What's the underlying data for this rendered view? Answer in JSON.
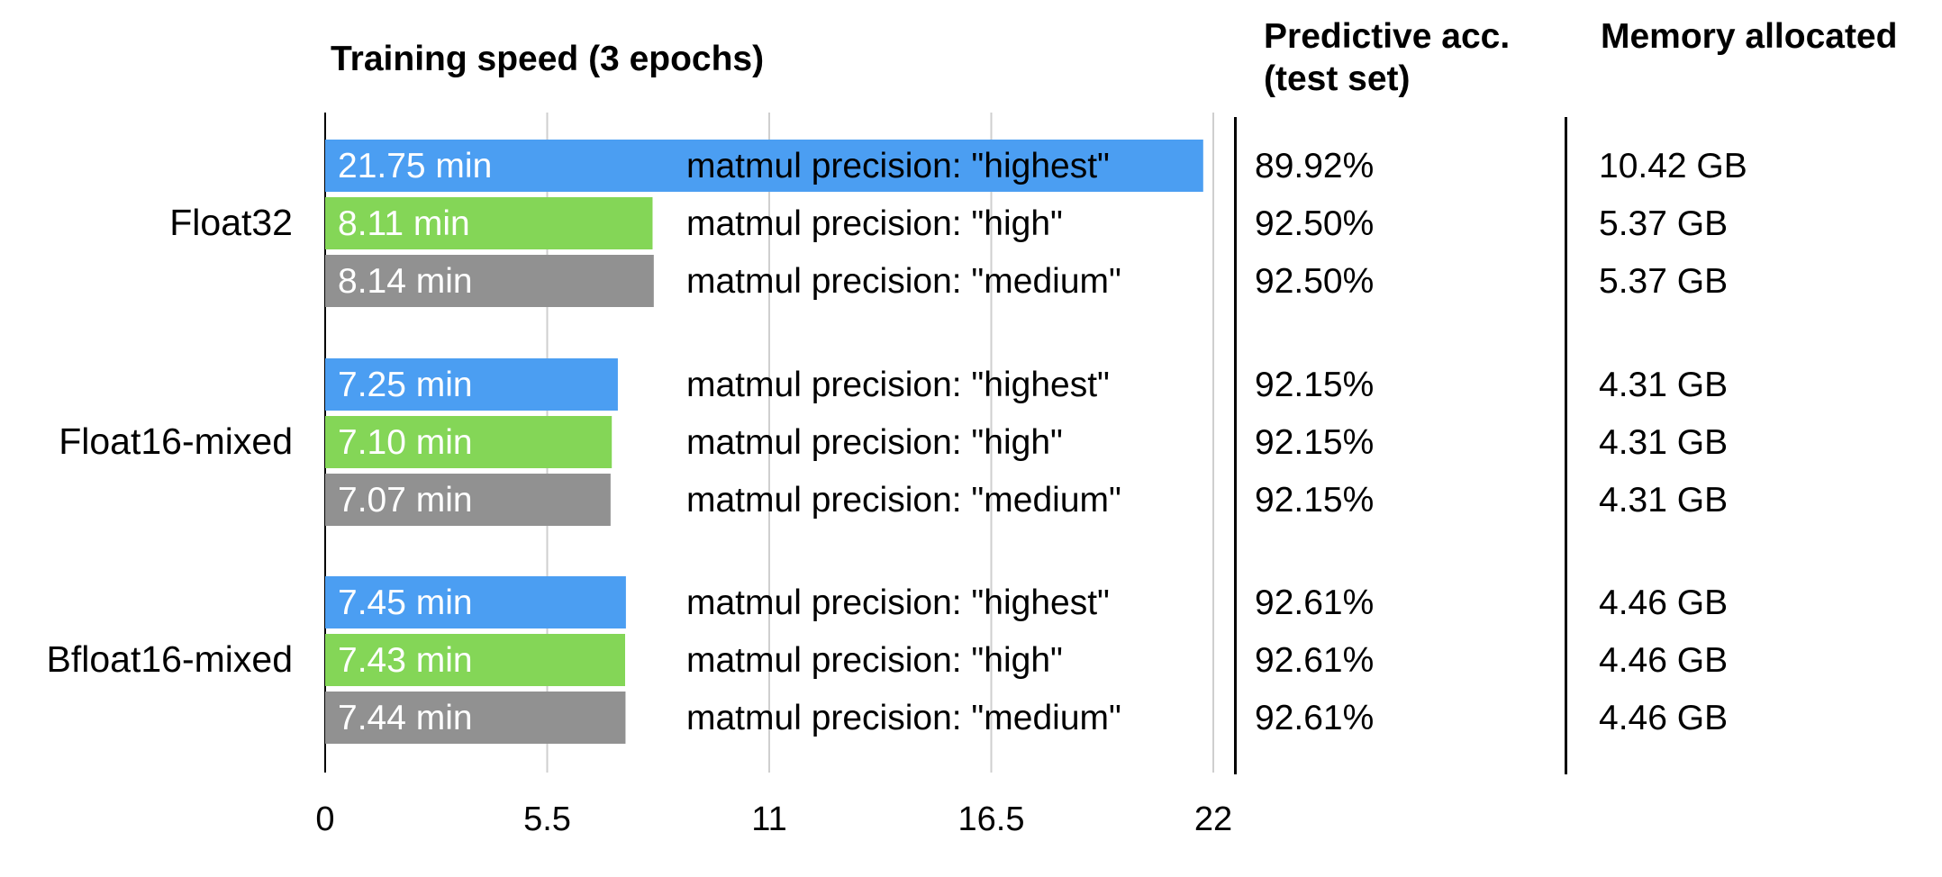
{
  "chart_data": {
    "type": "bar",
    "orientation": "horizontal",
    "title": "Training speed (3 epochs)",
    "xlim": [
      0,
      22
    ],
    "xticks": [
      "0",
      "5.5",
      "11",
      "16.5",
      "22"
    ],
    "grid": true,
    "groups": [
      {
        "name": "Float32",
        "rows": [
          {
            "value": 21.75,
            "bar_label": "21.75 min",
            "precision": "matmul precision: \"highest\"",
            "accuracy": "89.92%",
            "memory": "10.42 GB",
            "color": "#4b9ef2"
          },
          {
            "value": 8.11,
            "bar_label": "8.11 min",
            "precision": "matmul precision: \"high\"",
            "accuracy": "92.50%",
            "memory": "5.37 GB",
            "color": "#84d657"
          },
          {
            "value": 8.14,
            "bar_label": "8.14 min",
            "precision": "matmul precision: \"medium\"",
            "accuracy": "92.50%",
            "memory": "5.37 GB",
            "color": "#919191"
          }
        ]
      },
      {
        "name": "Float16-mixed",
        "rows": [
          {
            "value": 7.25,
            "bar_label": "7.25 min",
            "precision": "matmul precision: \"highest\"",
            "accuracy": "92.15%",
            "memory": "4.31 GB",
            "color": "#4b9ef2"
          },
          {
            "value": 7.1,
            "bar_label": "7.10 min",
            "precision": "matmul precision: \"high\"",
            "accuracy": "92.15%",
            "memory": "4.31 GB",
            "color": "#84d657"
          },
          {
            "value": 7.07,
            "bar_label": "7.07 min",
            "precision": "matmul precision: \"medium\"",
            "accuracy": "92.15%",
            "memory": "4.31 GB",
            "color": "#919191"
          }
        ]
      },
      {
        "name": "Bfloat16-mixed",
        "rows": [
          {
            "value": 7.45,
            "bar_label": "7.45 min",
            "precision": "matmul precision: \"highest\"",
            "accuracy": "92.61%",
            "memory": "4.46 GB",
            "color": "#4b9ef2"
          },
          {
            "value": 7.43,
            "bar_label": "7.43 min",
            "precision": "matmul precision: \"high\"",
            "accuracy": "92.61%",
            "memory": "4.46 GB",
            "color": "#84d657"
          },
          {
            "value": 7.44,
            "bar_label": "7.44 min",
            "precision": "matmul precision: \"medium\"",
            "accuracy": "92.61%",
            "memory": "4.46 GB",
            "color": "#919191"
          }
        ]
      }
    ]
  },
  "headers": {
    "training_speed": "Training speed (3 epochs)",
    "accuracy_line1": "Predictive acc.",
    "accuracy_line2": "(test set)",
    "memory": "Memory allocated"
  }
}
